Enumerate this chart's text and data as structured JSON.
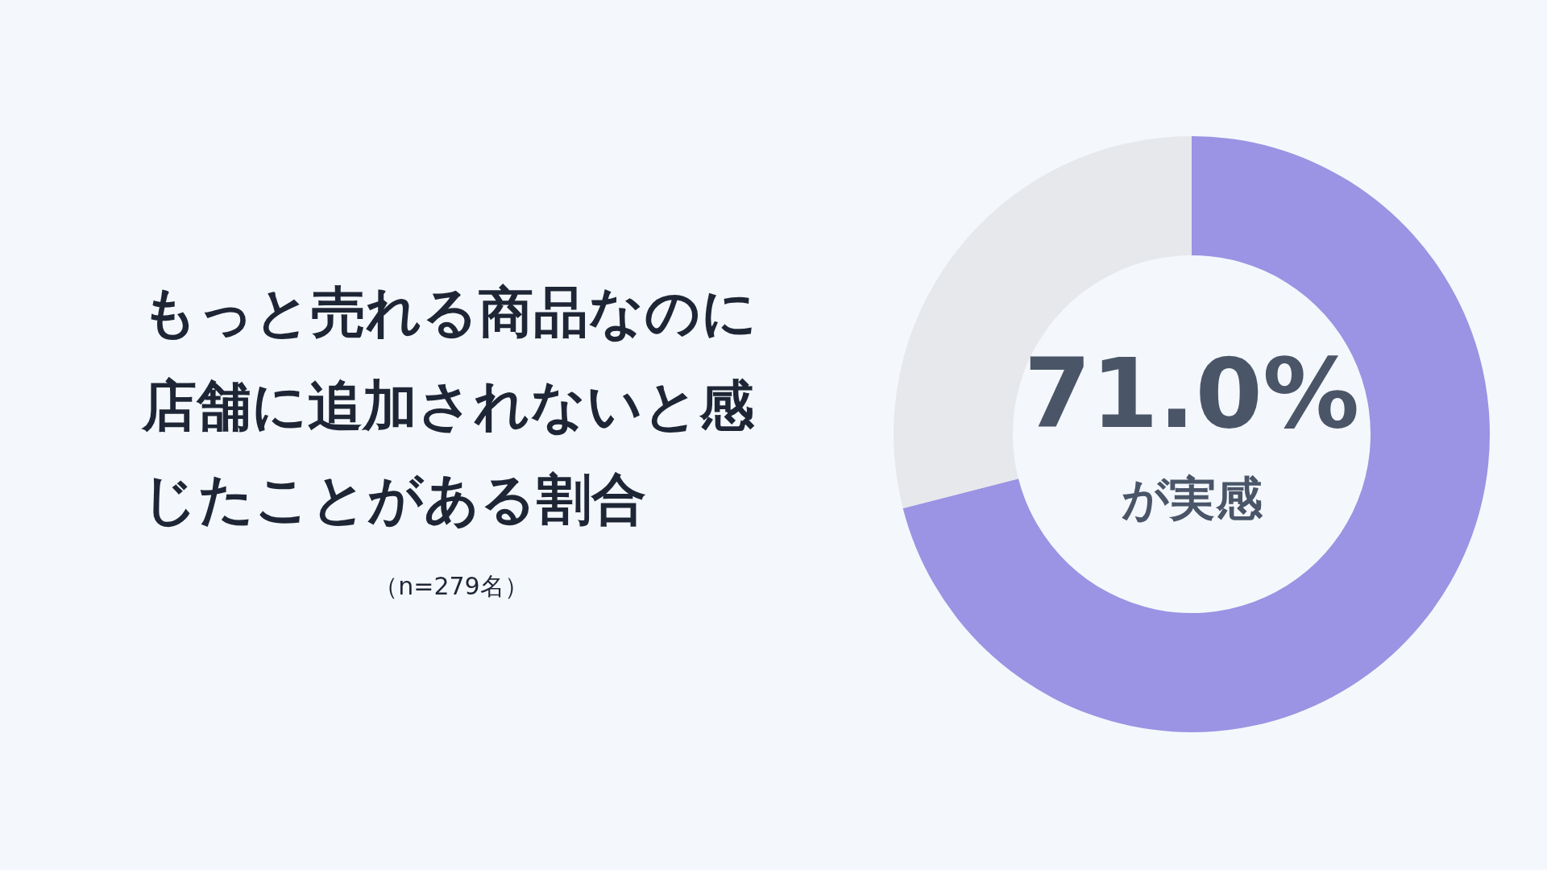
{
  "chart_data": {
    "type": "donut",
    "title": "もっと売れる商品なのに店舗に追加されないと感じたことがある割合",
    "categories": [
      null,
      null
    ],
    "values": [
      71.0,
      29.0
    ],
    "colors": [
      "#9b93e3",
      "#e6e8ec"
    ],
    "value_labels": [
      "71.0%",
      null
    ],
    "annotations": [
      "（n=279名）",
      "が実感"
    ],
    "legend": false
  }
}
